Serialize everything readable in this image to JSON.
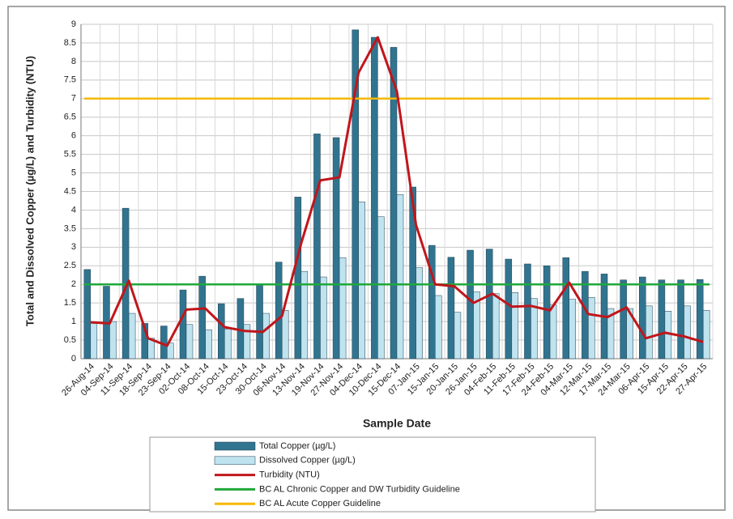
{
  "chart_data": {
    "type": "bar_line",
    "x_label": "Sample Date",
    "y_label": "Total and Dissolved Copper (µg/L) and Turbidity (NTU)",
    "categories": [
      "26-Aug-14",
      "04-Sep-14",
      "11-Sep-14",
      "18-Sep-14",
      "23-Sep-14",
      "02-Oct-14",
      "08-Oct-14",
      "15-Oct-14",
      "23-Oct-14",
      "30-Oct-14",
      "06-Nov-14",
      "13-Nov-14",
      "19-Nov-14",
      "27-Nov-14",
      "04-Dec-14",
      "10-Dec-14",
      "15-Dec-14",
      "07-Jan-15",
      "15-Jan-15",
      "20-Jan-15",
      "26-Jan-15",
      "04-Feb-15",
      "11-Feb-15",
      "17-Feb-15",
      "24-Feb-15",
      "04-Mar-15",
      "12-Mar-15",
      "17-Mar-15",
      "24-Mar-15",
      "06-Apr-15",
      "15-Apr-15",
      "22-Apr-15",
      "27-Apr-15"
    ],
    "series": [
      {
        "name": "Total Copper (µg/L)",
        "kind": "bar",
        "color": "#31748f",
        "values": [
          2.4,
          1.95,
          4.05,
          0.95,
          0.88,
          1.85,
          2.22,
          1.48,
          1.62,
          2.0,
          2.6,
          4.35,
          6.05,
          5.95,
          8.85,
          8.65,
          8.38,
          4.62,
          3.05,
          2.73,
          2.92,
          2.95,
          2.68,
          2.55,
          2.5,
          2.72,
          2.35,
          2.28,
          2.12,
          2.2,
          2.12,
          2.12,
          2.13
        ]
      },
      {
        "name": "Dissolved Copper (µg/L)",
        "kind": "bar",
        "color": "#bfe3ef",
        "values": [
          0.95,
          1.0,
          1.22,
          0.55,
          0.42,
          0.92,
          0.78,
          0.8,
          0.92,
          1.22,
          1.3,
          2.35,
          2.2,
          2.72,
          4.22,
          3.82,
          4.42,
          2.45,
          1.7,
          1.25,
          1.8,
          1.75,
          1.78,
          1.62,
          1.45,
          1.6,
          1.65,
          1.35,
          1.35,
          1.42,
          1.28,
          1.42,
          1.3
        ]
      },
      {
        "name": "Turbidity (NTU)",
        "kind": "line",
        "color": "#c0161b",
        "values": [
          0.98,
          0.95,
          2.1,
          0.55,
          0.35,
          1.32,
          1.35,
          0.85,
          0.75,
          0.72,
          1.15,
          3.1,
          4.8,
          4.88,
          7.7,
          8.65,
          7.2,
          3.6,
          2.0,
          1.95,
          1.5,
          1.75,
          1.4,
          1.42,
          1.3,
          2.05,
          1.2,
          1.12,
          1.38,
          0.55,
          0.7,
          0.6,
          0.45
        ]
      }
    ],
    "guidelines": [
      {
        "name": "BC AL Chronic Copper  and DW Turbidity Guideline",
        "color": "#1fa83a",
        "value": 2
      },
      {
        "name": "BC AL Acute Copper Guideline",
        "color": "#f5b800",
        "value": 7
      }
    ],
    "ylim": [
      0,
      9
    ],
    "yticks": [
      0,
      0.5,
      1,
      1.5,
      2,
      2.5,
      3,
      3.5,
      4,
      4.5,
      5,
      5.5,
      6,
      6.5,
      7,
      7.5,
      8,
      8.5,
      9
    ],
    "grid": true
  }
}
